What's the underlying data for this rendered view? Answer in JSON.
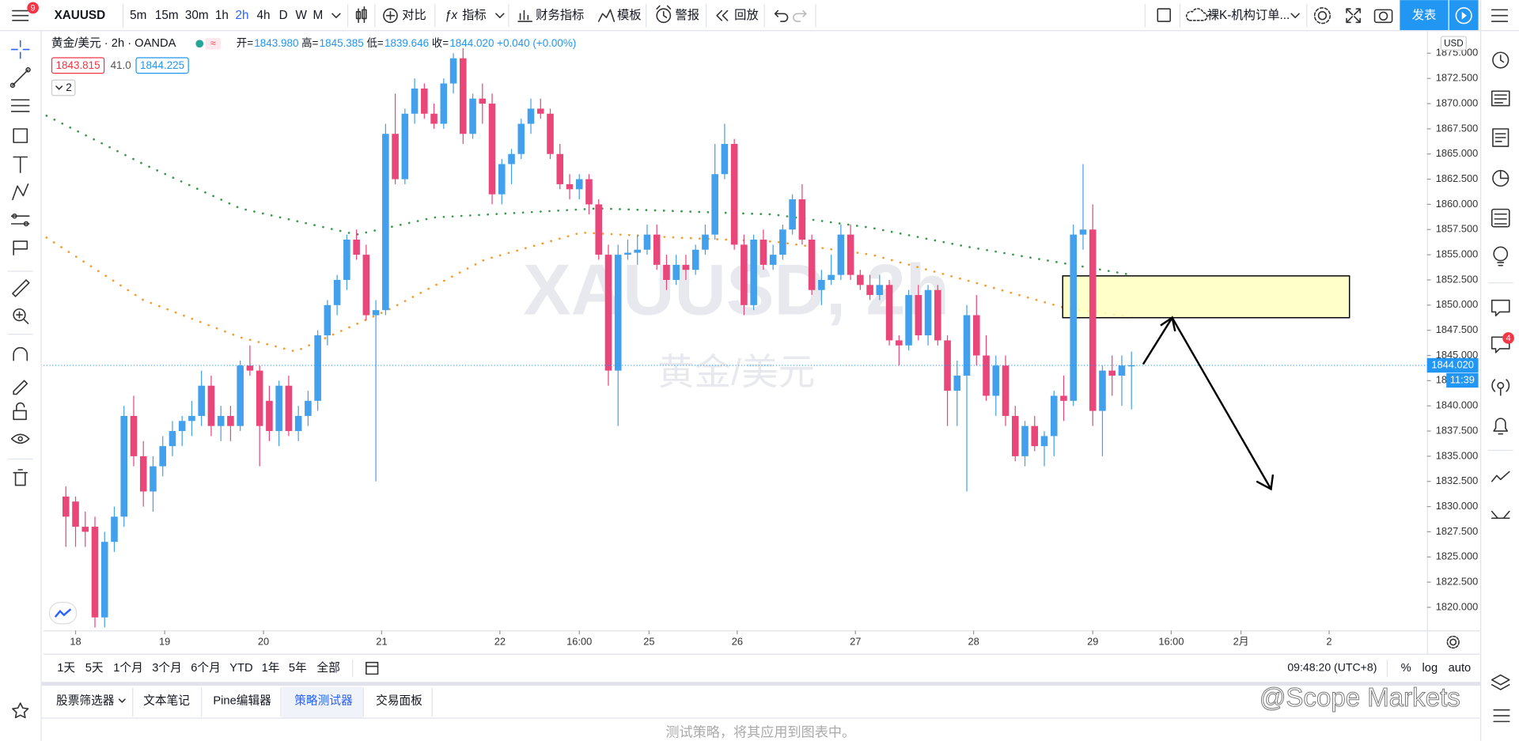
{
  "ui": {
    "menu_badge": "9",
    "symbol": "XAUUSD",
    "intervals": [
      "5m",
      "15m",
      "30m",
      "1h",
      "2h",
      "4h",
      "D",
      "W",
      "M"
    ],
    "toolbar": [
      "对比",
      "指标",
      "财务指标",
      "模板",
      "警报",
      "回放"
    ],
    "layout_name": "裸K-机构订单...",
    "publish": "发表",
    "chat_badge": "4",
    "legend": {
      "title": "黄金/美元 · 2h · OANDA",
      "ohlc": [
        {
          "k": "开=",
          "v": "1843.980"
        },
        {
          "k": "高=",
          "v": "1845.385"
        },
        {
          "k": "低=",
          "v": "1839.646"
        },
        {
          "k": "收=",
          "v": "1844.020"
        }
      ],
      "change": "+0.040 (+0.00%)",
      "bid": "1843.815",
      "spread": "41.0",
      "ask": "1844.225",
      "indicators": "2"
    },
    "ranges": [
      "1天",
      "5天",
      "1个月",
      "3个月",
      "6个月",
      "YTD",
      "1年",
      "5年",
      "全部"
    ],
    "clock": "09:48:20 (UTC+8)",
    "scale_toggles": [
      "%",
      "log",
      "auto"
    ],
    "tabs": [
      "股票筛选器",
      "文本笔记",
      "Pine编辑器",
      "策略测试器",
      "交易面板"
    ],
    "panel_hint": "测试策略，将其应用到图表中。",
    "source_watermark": "@Scope Markets"
  },
  "chart_data": {
    "type": "candlestick",
    "watermark": "XAUUSD, 2h",
    "watermark_sub": "黄金/美元",
    "currency": "USD",
    "up_color": "#42a0ec",
    "down_color": "#e9467a",
    "xlim": [
      -2.3,
      140.5
    ],
    "ylim": [
      1817.7,
      1877.2
    ],
    "xticks": [
      {
        "value": 1,
        "label": "18"
      },
      {
        "value": 10.2,
        "label": "19"
      },
      {
        "value": 20.4,
        "label": "20"
      },
      {
        "value": 32.6,
        "label": "21"
      },
      {
        "value": 44.8,
        "label": "22"
      },
      {
        "value": 53,
        "label": "16:00"
      },
      {
        "value": 60.2,
        "label": "25"
      },
      {
        "value": 69.3,
        "label": "26"
      },
      {
        "value": 81.5,
        "label": "27"
      },
      {
        "value": 93.7,
        "label": "28"
      },
      {
        "value": 106,
        "label": "29"
      },
      {
        "value": 114.1,
        "label": "16:00"
      },
      {
        "value": 121.3,
        "label": "2月"
      },
      {
        "value": 130.4,
        "label": "2"
      }
    ],
    "yticks": [
      {
        "value": 1875,
        "label": "1875.000"
      },
      {
        "value": 1872.5,
        "label": "1872.500"
      },
      {
        "value": 1870,
        "label": "1870.000"
      },
      {
        "value": 1867.5,
        "label": "1867.500"
      },
      {
        "value": 1865,
        "label": "1865.000"
      },
      {
        "value": 1862.5,
        "label": "1862.500"
      },
      {
        "value": 1860,
        "label": "1860.000"
      },
      {
        "value": 1857.5,
        "label": "1857.500"
      },
      {
        "value": 1855,
        "label": "1855.000"
      },
      {
        "value": 1852.5,
        "label": "1852.500"
      },
      {
        "value": 1850,
        "label": "1850.000"
      },
      {
        "value": 1847.5,
        "label": "1847.500"
      },
      {
        "value": 1845,
        "label": "1845.000"
      },
      {
        "value": 1842.5,
        "label": "1842.500"
      },
      {
        "value": 1840,
        "label": "1840.000"
      },
      {
        "value": 1837.5,
        "label": "1837.500"
      },
      {
        "value": 1835,
        "label": "1835.000"
      },
      {
        "value": 1832.5,
        "label": "1832.500"
      },
      {
        "value": 1830,
        "label": "1830.000"
      },
      {
        "value": 1827.5,
        "label": "1827.500"
      },
      {
        "value": 1825,
        "label": "1825.000"
      },
      {
        "value": 1822.5,
        "label": "1822.500"
      },
      {
        "value": 1820,
        "label": "1820.000"
      }
    ],
    "last_price": {
      "value": 1844.02,
      "label": "1844.020"
    },
    "countdown": "11:39",
    "zone": {
      "color": "#ffffc0",
      "x": [
        102.9,
        132.5
      ],
      "y": [
        1848.75,
        1852.9
      ]
    },
    "overlays": [
      {
        "color": "#3a9a4a",
        "x": [
          -2,
          8,
          18,
          30,
          38,
          55,
          73,
          83,
          93,
          110
        ],
        "values": [
          1868.8,
          1864,
          1859.6,
          1857,
          1858.7,
          1859.6,
          1859,
          1857.7,
          1855.8,
          1853
        ]
      },
      {
        "color": "#f59b2a",
        "x": [
          -2,
          8,
          18,
          23.7,
          33.2,
          43.2,
          53.2,
          63.2,
          73.2,
          83.2,
          93.2,
          103.2,
          110.2
        ],
        "values": [
          1856.7,
          1850.5,
          1846.8,
          1845.4,
          1849.5,
          1854.5,
          1857.2,
          1856.7,
          1856.3,
          1855,
          1852.4,
          1849.7,
          1848.8
        ]
      }
    ],
    "ohlc": [
      [
        1831,
        1832,
        1826,
        1829
      ],
      [
        1830.5,
        1831,
        1826,
        1828
      ],
      [
        1828,
        1829.5,
        1826,
        1827.5
      ],
      [
        1828,
        1829,
        1818,
        1819
      ],
      [
        1819,
        1827.5,
        1818,
        1826.5
      ],
      [
        1826.5,
        1830,
        1825.5,
        1829
      ],
      [
        1829,
        1840,
        1828,
        1839
      ],
      [
        1839,
        1841,
        1834,
        1835
      ],
      [
        1835,
        1836.5,
        1830,
        1831.5
      ],
      [
        1831.5,
        1835,
        1829.5,
        1834
      ],
      [
        1834,
        1837,
        1833,
        1836
      ],
      [
        1836,
        1838.5,
        1835,
        1837.5
      ],
      [
        1837.5,
        1839,
        1836,
        1838.5
      ],
      [
        1838.5,
        1840.5,
        1837,
        1839
      ],
      [
        1839,
        1843.5,
        1838,
        1842
      ],
      [
        1842,
        1843,
        1837,
        1838
      ],
      [
        1838,
        1840,
        1836.5,
        1839
      ],
      [
        1839,
        1840,
        1836.5,
        1838
      ],
      [
        1838,
        1844.5,
        1837.5,
        1844
      ],
      [
        1844,
        1846,
        1843,
        1843.5
      ],
      [
        1843.5,
        1844,
        1834,
        1838
      ],
      [
        1840.5,
        1842,
        1836.5,
        1837.5
      ],
      [
        1837.5,
        1842.5,
        1836,
        1842
      ],
      [
        1842,
        1843,
        1837,
        1837.5
      ],
      [
        1837.5,
        1840,
        1836.5,
        1839
      ],
      [
        1839,
        1841.5,
        1838,
        1840.5
      ],
      [
        1840.5,
        1847.5,
        1839.5,
        1847
      ],
      [
        1847,
        1850.5,
        1846,
        1850
      ],
      [
        1850,
        1853,
        1849,
        1852.5
      ],
      [
        1852.5,
        1857,
        1851.5,
        1856.5
      ],
      [
        1856.5,
        1857.5,
        1854.5,
        1855
      ],
      [
        1855,
        1856,
        1848.5,
        1849
      ],
      [
        1849,
        1850.5,
        1832.5,
        1849.5
      ],
      [
        1849.5,
        1868,
        1849,
        1867
      ],
      [
        1867,
        1871,
        1862,
        1862.5
      ],
      [
        1862.5,
        1869.5,
        1862,
        1869
      ],
      [
        1869,
        1872.5,
        1868,
        1871.5
      ],
      [
        1871.5,
        1872,
        1868.5,
        1869
      ],
      [
        1869,
        1870,
        1867.5,
        1868
      ],
      [
        1868,
        1872.5,
        1867.5,
        1872
      ],
      [
        1872,
        1875,
        1871,
        1874.5
      ],
      [
        1874.5,
        1875.5,
        1866,
        1867
      ],
      [
        1867,
        1871,
        1866.5,
        1870.5
      ],
      [
        1870.5,
        1872,
        1868,
        1870
      ],
      [
        1870,
        1871,
        1860,
        1861
      ],
      [
        1861,
        1864.5,
        1860,
        1864
      ],
      [
        1864,
        1865.5,
        1862,
        1865
      ],
      [
        1865,
        1868.5,
        1864.5,
        1868
      ],
      [
        1868,
        1870.5,
        1867,
        1869.5
      ],
      [
        1869.5,
        1870.5,
        1868.5,
        1869
      ],
      [
        1869,
        1869.5,
        1864.5,
        1865
      ],
      [
        1865,
        1866,
        1861.5,
        1862
      ],
      [
        1862,
        1863,
        1860.5,
        1861.5
      ],
      [
        1861.5,
        1863,
        1860.5,
        1862.5
      ],
      [
        1862.5,
        1863,
        1859,
        1860
      ],
      [
        1860,
        1860.5,
        1854.5,
        1855
      ],
      [
        1855,
        1856,
        1842,
        1843.5
      ],
      [
        1843.5,
        1856,
        1838,
        1855
      ],
      [
        1855,
        1856.5,
        1854.5,
        1855.2
      ],
      [
        1855.2,
        1857,
        1854,
        1855.5
      ],
      [
        1855.5,
        1858,
        1855,
        1857
      ],
      [
        1857,
        1858,
        1853.5,
        1854
      ],
      [
        1854,
        1855,
        1851.5,
        1852.5
      ],
      [
        1852.5,
        1855,
        1852,
        1854
      ],
      [
        1854,
        1855,
        1852.5,
        1853.5
      ],
      [
        1853.5,
        1856,
        1853,
        1855.5
      ],
      [
        1855.5,
        1858,
        1855,
        1857
      ],
      [
        1857,
        1866,
        1856.5,
        1863
      ],
      [
        1863,
        1868,
        1862.5,
        1866
      ],
      [
        1866,
        1866.5,
        1855.5,
        1856
      ],
      [
        1856,
        1857,
        1849,
        1850
      ],
      [
        1850,
        1857,
        1849.5,
        1856.5
      ],
      [
        1856.5,
        1857.5,
        1853.5,
        1854
      ],
      [
        1854,
        1856,
        1853.5,
        1855
      ],
      [
        1855,
        1858,
        1854.5,
        1857.5
      ],
      [
        1857.5,
        1861,
        1857,
        1860.5
      ],
      [
        1860.5,
        1862,
        1856,
        1856.5
      ],
      [
        1856.5,
        1857,
        1851,
        1851.5
      ],
      [
        1851.5,
        1853.5,
        1850,
        1852.5
      ],
      [
        1852.5,
        1855,
        1852,
        1853
      ],
      [
        1853,
        1858,
        1852.5,
        1857
      ],
      [
        1857,
        1858,
        1852.5,
        1853
      ],
      [
        1853,
        1853.5,
        1851.5,
        1852
      ],
      [
        1852,
        1853,
        1850.5,
        1851
      ],
      [
        1851,
        1853,
        1850.5,
        1852
      ],
      [
        1852,
        1852.5,
        1846,
        1846.5
      ],
      [
        1846.5,
        1847,
        1844,
        1846
      ],
      [
        1846,
        1851.5,
        1845.5,
        1851
      ],
      [
        1851,
        1852,
        1846.5,
        1847
      ],
      [
        1847,
        1852,
        1846,
        1851.5
      ],
      [
        1851.5,
        1852,
        1846,
        1846.5
      ],
      [
        1846.5,
        1847,
        1838,
        1841.5
      ],
      [
        1841.5,
        1844.5,
        1838,
        1843
      ],
      [
        1843,
        1850,
        1831.5,
        1849
      ],
      [
        1849,
        1851,
        1844,
        1845
      ],
      [
        1845,
        1847,
        1840.5,
        1841
      ],
      [
        1841,
        1845,
        1839,
        1844
      ],
      [
        1844,
        1845,
        1838,
        1839
      ],
      [
        1839,
        1840,
        1834.5,
        1835
      ],
      [
        1835,
        1838.5,
        1834,
        1838
      ],
      [
        1838,
        1839,
        1835.5,
        1836
      ],
      [
        1836,
        1837.5,
        1834,
        1837
      ],
      [
        1837,
        1841.5,
        1835,
        1841
      ],
      [
        1841,
        1843,
        1838.5,
        1840.5
      ],
      [
        1840.5,
        1858,
        1840,
        1857
      ],
      [
        1857,
        1864,
        1855.5,
        1857.5
      ],
      [
        1857.5,
        1860,
        1838,
        1839.5
      ],
      [
        1839.5,
        1844,
        1835,
        1843.5
      ],
      [
        1843.5,
        1845,
        1841,
        1843
      ],
      [
        1843,
        1845,
        1840,
        1844
      ],
      [
        1843.98,
        1845.385,
        1839.646,
        1844.02
      ]
    ]
  }
}
